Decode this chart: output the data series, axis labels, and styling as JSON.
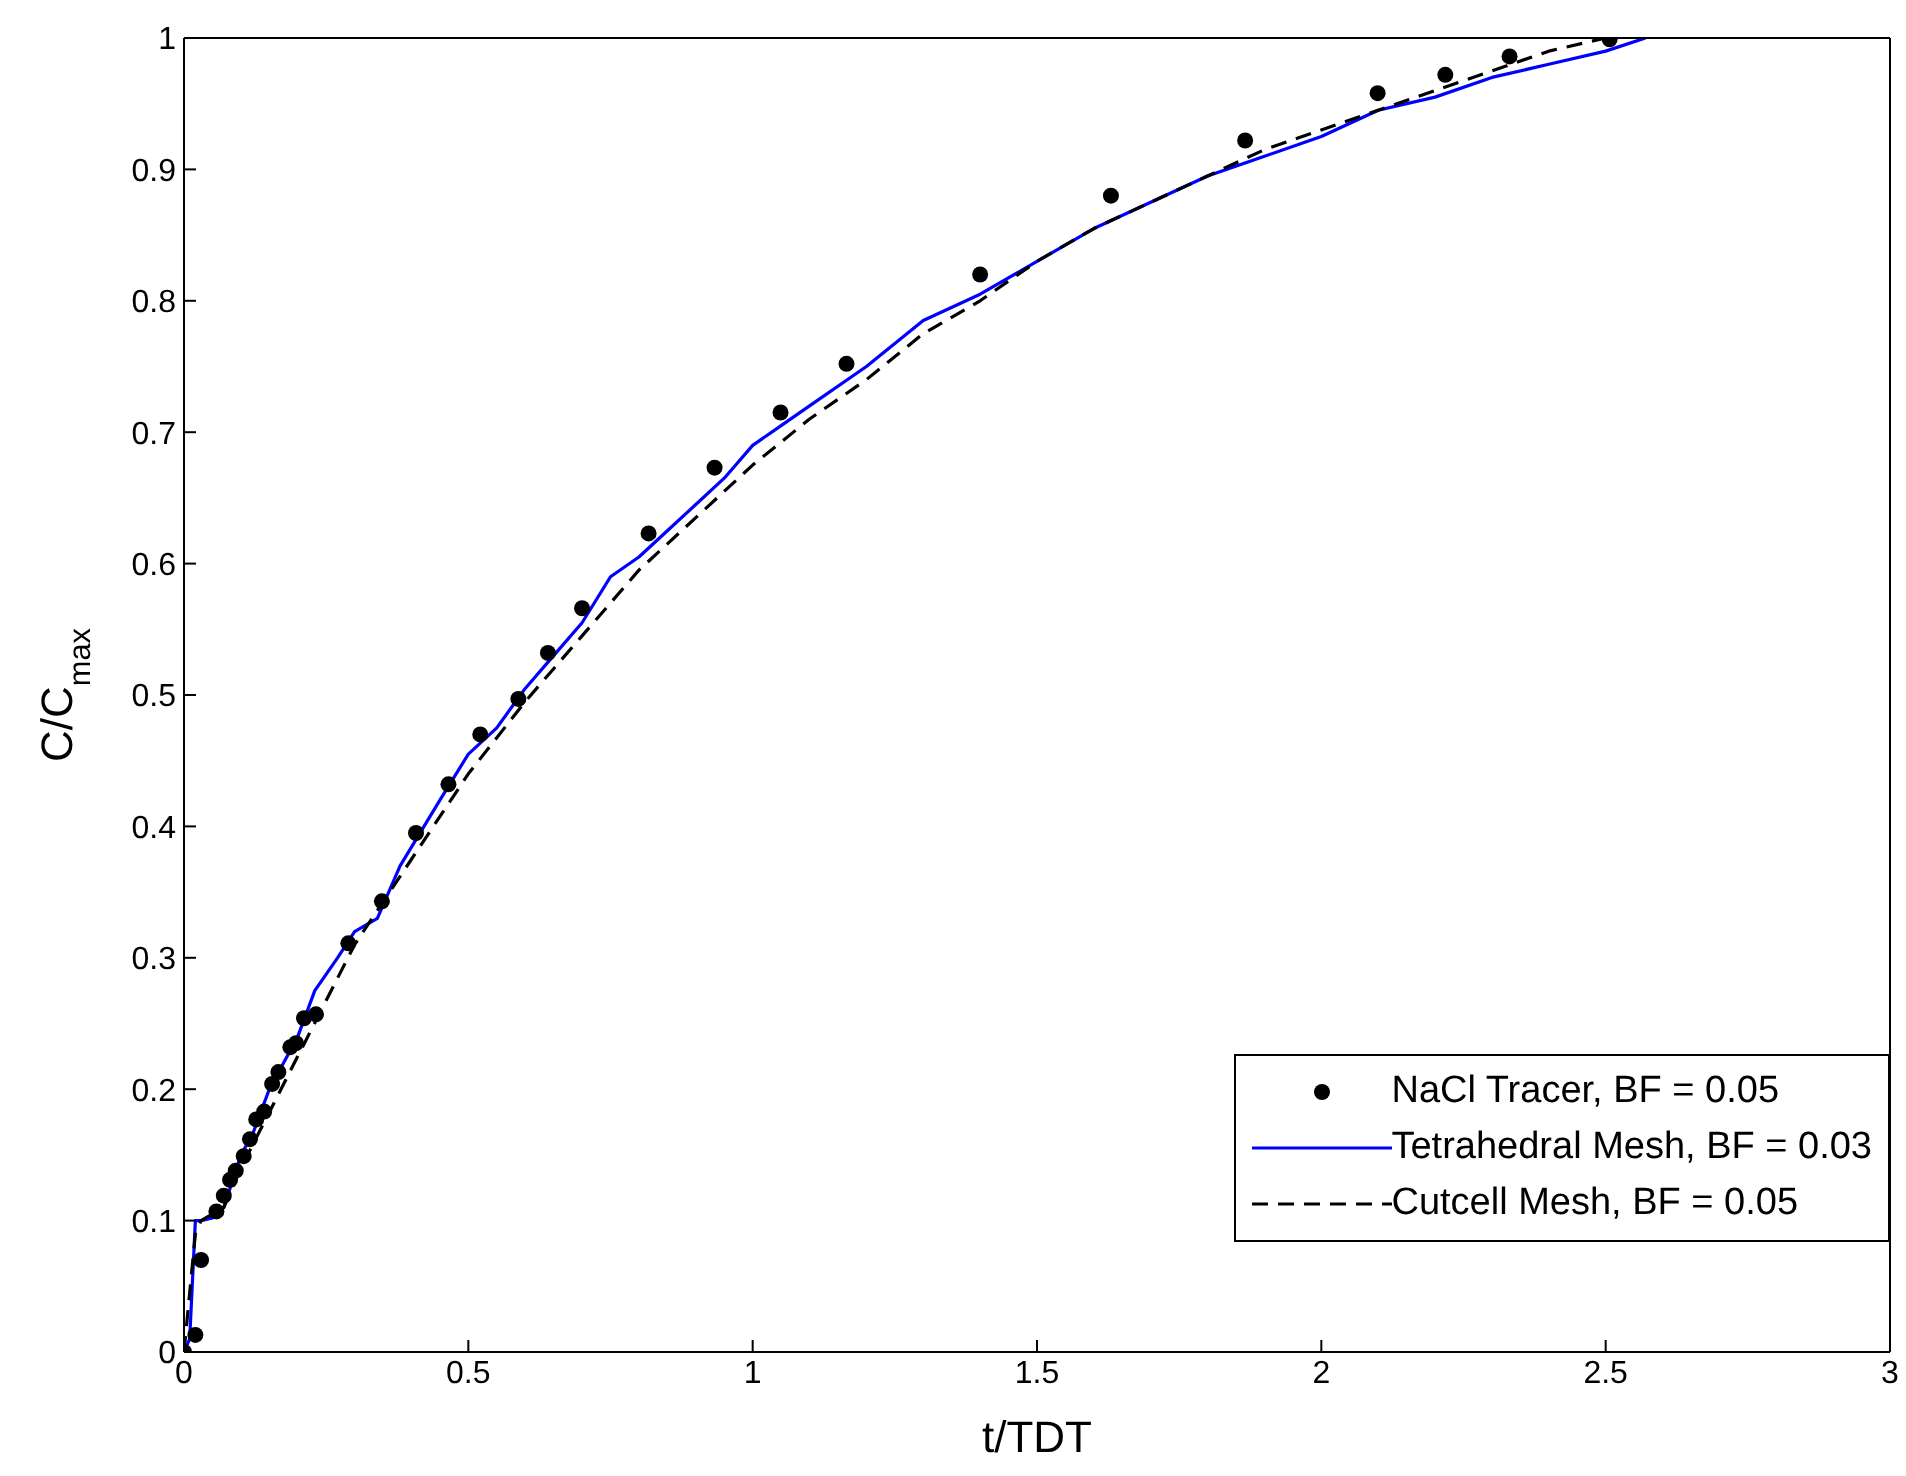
{
  "chart_data": {
    "type": "line",
    "xlabel": "t/TDT",
    "ylabel": "C/C$_{max}$",
    "xlim": [
      0,
      3
    ],
    "xticks": [
      0,
      0.5,
      1,
      1.5,
      2,
      2.5,
      3
    ],
    "ylim": [
      0,
      1
    ],
    "yticks": [
      0,
      0.1,
      0.2,
      0.3,
      0.4,
      0.5,
      0.6,
      0.7,
      0.8,
      0.9,
      1
    ],
    "grid": false,
    "legend": "bottom right",
    "series": [
      {
        "name": "NaCl Tracer, BF = 0.05",
        "type": "scatter",
        "marker": "circle",
        "color": "#000000",
        "x": [
          0,
          0.02,
          0.03,
          0.057,
          0.07,
          0.081,
          0.091,
          0.105,
          0.116,
          0.127,
          0.141,
          0.155,
          0.166,
          0.187,
          0.197,
          0.211,
          0.232,
          0.289,
          0.348,
          0.408,
          0.465,
          0.521,
          0.588,
          0.64,
          0.7,
          0.817,
          0.933,
          1.049,
          1.165,
          1.4,
          1.63,
          1.866,
          2.099,
          2.218,
          2.331,
          2.507
        ],
        "values": [
          0,
          0.013,
          0.07,
          0.107,
          0.119,
          0.131,
          0.138,
          0.149,
          0.162,
          0.177,
          0.183,
          0.204,
          0.213,
          0.232,
          0.235,
          0.254,
          0.257,
          0.311,
          0.343,
          0.395,
          0.432,
          0.47,
          0.497,
          0.532,
          0.566,
          0.623,
          0.673,
          0.715,
          0.752,
          0.82,
          0.88,
          0.922,
          0.958,
          0.972,
          0.986,
          0.999
        ]
      },
      {
        "name": "Tetrahedral Mesh, BF = 0.03",
        "type": "line",
        "line_style": "solid",
        "marker": "none",
        "color": "#0000ff",
        "x": [
          0,
          0.01,
          0.02,
          0.03,
          0.05,
          0.07,
          0.1,
          0.12,
          0.15,
          0.2,
          0.23,
          0.27,
          0.3,
          0.34,
          0.38,
          0.45,
          0.5,
          0.55,
          0.6,
          0.65,
          0.7,
          0.75,
          0.8,
          0.85,
          0.9,
          0.95,
          1.0,
          1.05,
          1.1,
          1.2,
          1.3,
          1.4,
          1.5,
          1.6,
          1.7,
          1.8,
          1.9,
          2.0,
          2.1,
          2.2,
          2.3,
          2.4,
          2.5,
          2.57
        ],
        "values": [
          0,
          0.01,
          0.1,
          0.1,
          0.102,
          0.11,
          0.15,
          0.165,
          0.2,
          0.24,
          0.275,
          0.3,
          0.32,
          0.33,
          0.37,
          0.42,
          0.455,
          0.475,
          0.505,
          0.53,
          0.555,
          0.59,
          0.605,
          0.625,
          0.645,
          0.665,
          0.69,
          0.705,
          0.72,
          0.75,
          0.785,
          0.805,
          0.83,
          0.855,
          0.875,
          0.895,
          0.91,
          0.925,
          0.945,
          0.955,
          0.97,
          0.98,
          0.99,
          1.0
        ]
      },
      {
        "name": "Cutcell Mesh, BF = 0.05",
        "type": "line",
        "line_style": "dashed",
        "marker": "none",
        "color": "#000000",
        "x": [
          0,
          0.02,
          0.03,
          0.07,
          0.1,
          0.2,
          0.3,
          0.4,
          0.5,
          0.6,
          0.7,
          0.8,
          0.9,
          1.0,
          1.1,
          1.2,
          1.3,
          1.4,
          1.5,
          1.6,
          1.7,
          1.8,
          1.9,
          2.0,
          2.1,
          2.2,
          2.3,
          2.4,
          2.5
        ],
        "values": [
          0,
          0.09,
          0.1,
          0.11,
          0.14,
          0.225,
          0.31,
          0.375,
          0.44,
          0.495,
          0.545,
          0.595,
          0.635,
          0.675,
          0.71,
          0.74,
          0.775,
          0.8,
          0.83,
          0.855,
          0.875,
          0.895,
          0.915,
          0.93,
          0.945,
          0.96,
          0.975,
          0.99,
          1.0
        ]
      }
    ]
  }
}
